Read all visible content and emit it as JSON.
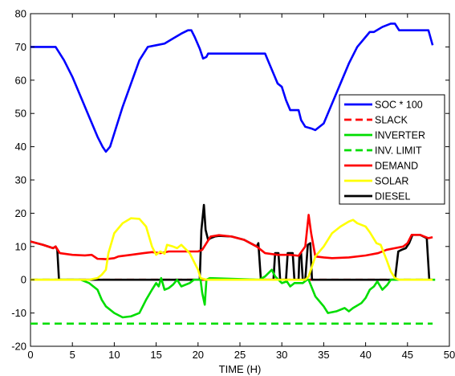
{
  "chart_data": {
    "type": "line",
    "xlabel": "TIME (H)",
    "ylabel": "",
    "xlim": [
      0,
      50
    ],
    "ylim": [
      -20,
      80
    ],
    "xticks": [
      0,
      5,
      10,
      15,
      20,
      25,
      30,
      35,
      40,
      45,
      50
    ],
    "yticks": [
      -20,
      -10,
      0,
      10,
      20,
      30,
      40,
      50,
      60,
      70,
      80
    ],
    "grid": false,
    "legend_position": "right",
    "series": [
      {
        "name": "SOC * 100",
        "color": "#0000ff",
        "dash": "solid",
        "points": [
          [
            0,
            70
          ],
          [
            3,
            70
          ],
          [
            4,
            66
          ],
          [
            5,
            61
          ],
          [
            6,
            55
          ],
          [
            7,
            49
          ],
          [
            8,
            43
          ],
          [
            8.6,
            40
          ],
          [
            9,
            38.5
          ],
          [
            9.5,
            40
          ],
          [
            10,
            44
          ],
          [
            11,
            52
          ],
          [
            12,
            59
          ],
          [
            13,
            66
          ],
          [
            14,
            70
          ],
          [
            15,
            70.5
          ],
          [
            16,
            71
          ],
          [
            17,
            72.5
          ],
          [
            18,
            74
          ],
          [
            18.8,
            75
          ],
          [
            19.2,
            75
          ],
          [
            19.6,
            73
          ],
          [
            20.2,
            69.5
          ],
          [
            20.6,
            66.5
          ],
          [
            21,
            67
          ],
          [
            21.2,
            68
          ],
          [
            28,
            68
          ],
          [
            28.5,
            65
          ],
          [
            29,
            62
          ],
          [
            29.5,
            59
          ],
          [
            30,
            58
          ],
          [
            30.5,
            54
          ],
          [
            31,
            51
          ],
          [
            32,
            51
          ],
          [
            32.3,
            48
          ],
          [
            32.8,
            46
          ],
          [
            33.5,
            45.5
          ],
          [
            34,
            45
          ],
          [
            35,
            47
          ],
          [
            36,
            53
          ],
          [
            37,
            59
          ],
          [
            38,
            65
          ],
          [
            39,
            70
          ],
          [
            40,
            73
          ],
          [
            40.5,
            74.5
          ],
          [
            41,
            74.5
          ],
          [
            42,
            76
          ],
          [
            43,
            77
          ],
          [
            43.5,
            77
          ],
          [
            44,
            75
          ],
          [
            47.5,
            75
          ],
          [
            48,
            70.5
          ]
        ]
      },
      {
        "name": "SLACK",
        "color": "#ff0000",
        "dash": "dashed",
        "points": [
          [
            0,
            0
          ],
          [
            48,
            0
          ]
        ]
      },
      {
        "name": "INVERTER",
        "color": "#00dd00",
        "dash": "solid",
        "points": [
          [
            0,
            0
          ],
          [
            3,
            0
          ],
          [
            3.3,
            0
          ],
          [
            6,
            0
          ],
          [
            7,
            -1
          ],
          [
            8,
            -3
          ],
          [
            8.5,
            -6
          ],
          [
            9,
            -8
          ],
          [
            10,
            -10
          ],
          [
            11,
            -11.3
          ],
          [
            12,
            -11
          ],
          [
            13,
            -10
          ],
          [
            13.8,
            -6
          ],
          [
            14.5,
            -3
          ],
          [
            15,
            -1
          ],
          [
            15.3,
            -2
          ],
          [
            15.6,
            0.5
          ],
          [
            16,
            -3
          ],
          [
            16.5,
            -2.5
          ],
          [
            17,
            -1.5
          ],
          [
            17.5,
            0
          ],
          [
            18,
            -2
          ],
          [
            19,
            -1
          ],
          [
            19.5,
            0
          ],
          [
            20,
            0
          ],
          [
            20.3,
            0
          ],
          [
            20.5,
            -4
          ],
          [
            20.8,
            -7.5
          ],
          [
            21,
            0
          ],
          [
            21.4,
            0.5
          ],
          [
            27.3,
            0
          ],
          [
            28,
            1
          ],
          [
            28.8,
            3
          ],
          [
            29.2,
            1
          ],
          [
            30,
            -1
          ],
          [
            30.6,
            -0.5
          ],
          [
            31,
            -2
          ],
          [
            31.5,
            -1
          ],
          [
            32.5,
            -1
          ],
          [
            33,
            0
          ],
          [
            33.2,
            0
          ],
          [
            34,
            -5
          ],
          [
            35,
            -8
          ],
          [
            35.5,
            -10
          ],
          [
            36.5,
            -9.5
          ],
          [
            37.5,
            -8.5
          ],
          [
            38,
            -9.5
          ],
          [
            38.5,
            -8.5
          ],
          [
            39.5,
            -7
          ],
          [
            40,
            -5.5
          ],
          [
            40.5,
            -3
          ],
          [
            41,
            -2
          ],
          [
            41.4,
            -0.5
          ],
          [
            42,
            -3
          ],
          [
            42.6,
            -1.5
          ],
          [
            43,
            0
          ],
          [
            43.5,
            0
          ],
          [
            48,
            0
          ],
          [
            48.3,
            0
          ]
        ]
      },
      {
        "name": "INV. LIMIT",
        "color": "#00dd00",
        "dash": "dashed",
        "points": [
          [
            0,
            -13.2
          ],
          [
            48,
            -13.2
          ]
        ]
      },
      {
        "name": "DEMAND",
        "color": "#ff0000",
        "dash": "solid",
        "points": [
          [
            0,
            11.5
          ],
          [
            1.5,
            10.5
          ],
          [
            2.7,
            9.5
          ],
          [
            3,
            10
          ],
          [
            3.5,
            8
          ],
          [
            5,
            7.5
          ],
          [
            6.5,
            7.3
          ],
          [
            7.3,
            7.5
          ],
          [
            8,
            6.3
          ],
          [
            9,
            6.2
          ],
          [
            10,
            6.5
          ],
          [
            10.5,
            7
          ],
          [
            12,
            7.5
          ],
          [
            13.5,
            8
          ],
          [
            14.5,
            8.3
          ],
          [
            15.5,
            8
          ],
          [
            16.5,
            8.5
          ],
          [
            18,
            8.5
          ],
          [
            19,
            8.5
          ],
          [
            20,
            8.5
          ],
          [
            20.5,
            9
          ],
          [
            21.5,
            13
          ],
          [
            22.5,
            13.4
          ],
          [
            24,
            13
          ],
          [
            25.5,
            12
          ],
          [
            27,
            10
          ],
          [
            28,
            8
          ],
          [
            29.5,
            7.5
          ],
          [
            31,
            7.5
          ],
          [
            32,
            7.2
          ],
          [
            32.8,
            10
          ],
          [
            33.2,
            19.5
          ],
          [
            33.5,
            14
          ],
          [
            34,
            7
          ],
          [
            35,
            6.7
          ],
          [
            36,
            6.5
          ],
          [
            38,
            6.7
          ],
          [
            40,
            7.3
          ],
          [
            41.5,
            8
          ],
          [
            42.5,
            9
          ],
          [
            43.5,
            9.5
          ],
          [
            44.5,
            10
          ],
          [
            45,
            11
          ],
          [
            45.5,
            13.5
          ],
          [
            46.5,
            13.5
          ],
          [
            47.5,
            12.5
          ],
          [
            48,
            12.8
          ]
        ]
      },
      {
        "name": "SOLAR",
        "color": "#ffff00",
        "dash": "solid",
        "points": [
          [
            0,
            0
          ],
          [
            7,
            0
          ],
          [
            8,
            0.5
          ],
          [
            8.5,
            1.5
          ],
          [
            9,
            3
          ],
          [
            9.3,
            8
          ],
          [
            10,
            14
          ],
          [
            11,
            17
          ],
          [
            12,
            18.5
          ],
          [
            13,
            18.3
          ],
          [
            13.8,
            16
          ],
          [
            14.5,
            10
          ],
          [
            15,
            7.5
          ],
          [
            15.5,
            8.5
          ],
          [
            16,
            7.8
          ],
          [
            16.3,
            10.5
          ],
          [
            17,
            10
          ],
          [
            17.5,
            9.5
          ],
          [
            18,
            10.5
          ],
          [
            19,
            8
          ],
          [
            20,
            3
          ],
          [
            20.3,
            0.5
          ],
          [
            21,
            0
          ],
          [
            32.8,
            0
          ],
          [
            33.2,
            1
          ],
          [
            34,
            7
          ],
          [
            35,
            10
          ],
          [
            36,
            14
          ],
          [
            37,
            16
          ],
          [
            38,
            17.5
          ],
          [
            38.5,
            18
          ],
          [
            39,
            17
          ],
          [
            40,
            16
          ],
          [
            40.5,
            14.3
          ],
          [
            41.3,
            11
          ],
          [
            41.8,
            10.5
          ],
          [
            42.5,
            6
          ],
          [
            43,
            2.5
          ],
          [
            43.5,
            0.5
          ],
          [
            44,
            0
          ],
          [
            48,
            0
          ]
        ]
      },
      {
        "name": "DIESEL",
        "color": "#000000",
        "dash": "solid",
        "points": [
          [
            0,
            11.5
          ],
          [
            1.5,
            10.5
          ],
          [
            2.7,
            9.5
          ],
          [
            3,
            10
          ],
          [
            3.2,
            9
          ],
          [
            3.4,
            0
          ],
          [
            20.2,
            0
          ],
          [
            20.4,
            15
          ],
          [
            20.7,
            22.5
          ],
          [
            20.9,
            15
          ],
          [
            21.2,
            12
          ],
          [
            21.5,
            12.5
          ],
          [
            22,
            13
          ],
          [
            22.5,
            13.2
          ],
          [
            24,
            13
          ],
          [
            25.5,
            12
          ],
          [
            27,
            10
          ],
          [
            27.2,
            11
          ],
          [
            27.5,
            0
          ],
          [
            29,
            0
          ],
          [
            29.2,
            8
          ],
          [
            29.6,
            8
          ],
          [
            29.8,
            0
          ],
          [
            30.5,
            0
          ],
          [
            30.7,
            8
          ],
          [
            31.3,
            8
          ],
          [
            31.5,
            0
          ],
          [
            32,
            0
          ],
          [
            32.1,
            7.5
          ],
          [
            32.3,
            8
          ],
          [
            32.5,
            0
          ],
          [
            32.8,
            0
          ],
          [
            33.1,
            10.5
          ],
          [
            33.4,
            11
          ],
          [
            33.6,
            0
          ],
          [
            43.5,
            0
          ],
          [
            43.9,
            8.5
          ],
          [
            44.3,
            9
          ],
          [
            44.8,
            9.5
          ],
          [
            45.2,
            11
          ],
          [
            45.6,
            13.5
          ],
          [
            46.5,
            13.5
          ],
          [
            47.3,
            12.5
          ],
          [
            47.6,
            0
          ],
          [
            47.9,
            0
          ]
        ]
      }
    ]
  }
}
